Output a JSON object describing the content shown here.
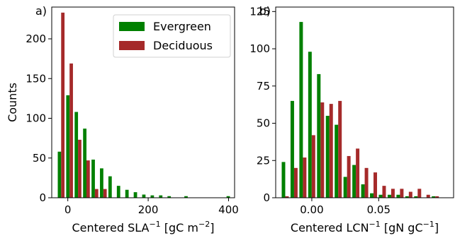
{
  "colors": {
    "Evergreen": "#008000",
    "Deciduous": "#a52a2a"
  },
  "legend": {
    "entries": [
      "Evergreen",
      "Deciduous"
    ],
    "placement": "top-right of panel a"
  },
  "chart_data": [
    {
      "type": "bar",
      "panel_label": "a)",
      "xlabel_main": "Centered SLA",
      "xlabel_sup": "−1",
      "xlabel_unit_open": " [gC m",
      "xlabel_unit_sup": "−2",
      "xlabel_unit_close": "]",
      "ylabel": "Counts",
      "xlim": [
        -40,
        415
      ],
      "ylim": [
        0,
        240
      ],
      "xticks": [
        0,
        200,
        400
      ],
      "xtick_labels": [
        "0",
        "200",
        "400"
      ],
      "yticks": [
        0,
        50,
        100,
        150,
        200
      ],
      "ytick_labels": [
        "0",
        "50",
        "100",
        "150",
        "200"
      ],
      "bin_width": 21,
      "bins": [
        -25,
        -4,
        17,
        38,
        59,
        80,
        101,
        122,
        143,
        164,
        185,
        206,
        227,
        248,
        269,
        290,
        311,
        332,
        353,
        374,
        395
      ],
      "series": [
        {
          "name": "Evergreen",
          "values": [
            58,
            129,
            108,
            87,
            48,
            37,
            27,
            15,
            10,
            7,
            4,
            3,
            3,
            2,
            0,
            2,
            0,
            0,
            0,
            0,
            2
          ]
        },
        {
          "name": "Deciduous",
          "values": [
            233,
            169,
            73,
            47,
            11,
            11,
            0,
            0,
            0,
            0,
            0,
            0,
            0,
            0,
            0,
            0,
            0,
            0,
            0,
            0,
            0
          ]
        }
      ]
    },
    {
      "type": "bar",
      "panel_label": "b)",
      "xlabel_main": "Centered LCN",
      "xlabel_sup": "−1",
      "xlabel_unit_open": " [gN gC",
      "xlabel_unit_sup": "−1",
      "xlabel_unit_close": "]",
      "ylabel": "",
      "xlim": [
        -0.027,
        0.106
      ],
      "ylim": [
        0,
        128
      ],
      "xticks": [
        0.0,
        0.05
      ],
      "xtick_labels": [
        "0.00",
        "0.05"
      ],
      "yticks": [
        0,
        25,
        50,
        75,
        100,
        125
      ],
      "ytick_labels": [
        "0",
        "25",
        "50",
        "75",
        "100",
        "125"
      ],
      "bin_width": 0.0066,
      "bins": [
        -0.0225,
        -0.0159,
        -0.0093,
        -0.0027,
        0.0039,
        0.0105,
        0.0171,
        0.0237,
        0.0303,
        0.0369,
        0.0435,
        0.0501,
        0.0567,
        0.0633,
        0.0699,
        0.0765,
        0.0831,
        0.0897,
        0.0963
      ],
      "series": [
        {
          "name": "Evergreen",
          "values": [
            24,
            65,
            118,
            98,
            83,
            55,
            49,
            14,
            22,
            9,
            3,
            2,
            2,
            2,
            1,
            1,
            0,
            1,
            0
          ]
        },
        {
          "name": "Deciduous",
          "values": [
            1,
            20,
            27,
            42,
            64,
            63,
            65,
            28,
            33,
            20,
            17,
            8,
            6,
            6,
            4,
            6,
            2,
            1,
            0
          ]
        }
      ]
    }
  ]
}
